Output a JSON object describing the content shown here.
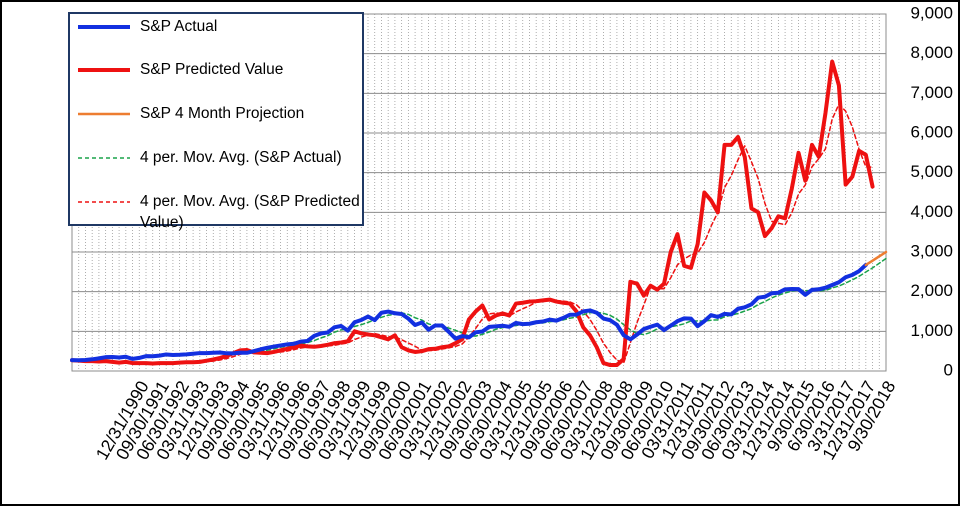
{
  "chart_data": {
    "type": "line",
    "categories": [
      null,
      null,
      null,
      null,
      null,
      null,
      null,
      null,
      null,
      null,
      "12/31/1990",
      null,
      null,
      "09/30/1991",
      null,
      null,
      "06/30/1992",
      null,
      null,
      "03/31/1993",
      null,
      null,
      "12/31/1993",
      null,
      null,
      "09/30/1994",
      null,
      null,
      "06/30/1995",
      null,
      null,
      "03/31/1996",
      null,
      null,
      "12/31/1996",
      null,
      null,
      "09/30/1997",
      null,
      null,
      "06/30/1998",
      null,
      null,
      "03/31/1999",
      null,
      null,
      "12/31/1999",
      null,
      null,
      "09/30/2000",
      null,
      null,
      "06/30/2001",
      null,
      null,
      "03/31/2002",
      null,
      null,
      "12/31/2002",
      null,
      null,
      "09/30/2003",
      null,
      null,
      "06/30/2004",
      null,
      null,
      "03/31/2005",
      null,
      null,
      "12/31/2005",
      null,
      null,
      "09/30/2006",
      null,
      null,
      "06/30/2007",
      null,
      null,
      "03/31/2008",
      null,
      null,
      "12/31/2008",
      null,
      null,
      "09/30/2009",
      null,
      null,
      "06/30/2010",
      null,
      null,
      "03/31/2011",
      null,
      null,
      "12/31/2011",
      null,
      null,
      "09/30/2012",
      null,
      null,
      "06/30/2013",
      null,
      null,
      "03/31/2014",
      null,
      null,
      "12/31/2014",
      null,
      null,
      "9/30/2015",
      null,
      null,
      "6/30/2016",
      null,
      null,
      "3/31/2017",
      null,
      null,
      "12/31/2017",
      null,
      null,
      "9/30/2018"
    ],
    "series": [
      {
        "name": "S&P Actual",
        "color": "#1230e0",
        "width": 4,
        "dashed": false,
        "values": [
          274,
          272,
          278,
          295,
          318,
          349,
          353,
          340,
          358,
          306,
          330,
          375,
          371,
          388,
          417,
          404,
          409,
          418,
          436,
          452,
          451,
          459,
          466,
          446,
          444,
          463,
          459,
          501,
          545,
          584,
          616,
          645,
          671,
          687,
          741,
          757,
          885,
          947,
          970,
          1102,
          1134,
          1017,
          1229,
          1286,
          1373,
          1283,
          1469,
          1499,
          1455,
          1437,
          1320,
          1160,
          1224,
          1041,
          1148,
          1147,
          990,
          815,
          880,
          848,
          975,
          996,
          1112,
          1126,
          1141,
          1115,
          1212,
          1181,
          1191,
          1229,
          1248,
          1295,
          1270,
          1336,
          1418,
          1421,
          1503,
          1527,
          1468,
          1323,
          1280,
          1166,
          903,
          798,
          919,
          1057,
          1115,
          1169,
          1031,
          1141,
          1258,
          1326,
          1321,
          1131,
          1258,
          1408,
          1362,
          1441,
          1426,
          1569,
          1606,
          1682,
          1848,
          1872,
          1960,
          1972,
          2059,
          2068,
          2063,
          1920,
          2044,
          2060,
          2099,
          2168,
          2239,
          2363,
          2423,
          2519,
          2674,
          null,
          null,
          null
        ]
      },
      {
        "name": "S&P Predicted Value",
        "color": "#ee1111",
        "width": 4,
        "dashed": false,
        "values": [
          270,
          260,
          250,
          250,
          240,
          250,
          230,
          210,
          230,
          200,
          200,
          200,
          190,
          200,
          200,
          200,
          210,
          220,
          220,
          230,
          260,
          290,
          330,
          380,
          450,
          520,
          530,
          470,
          460,
          450,
          480,
          520,
          560,
          600,
          640,
          620,
          610,
          630,
          660,
          700,
          720,
          750,
          1000,
          950,
          920,
          900,
          850,
          800,
          900,
          600,
          520,
          480,
          500,
          550,
          560,
          600,
          620,
          700,
          800,
          1300,
          1500,
          1650,
          1300,
          1400,
          1450,
          1400,
          1700,
          1720,
          1750,
          1760,
          1780,
          1800,
          1750,
          1720,
          1700,
          1500,
          1100,
          900,
          600,
          200,
          150,
          150,
          300,
          2250,
          2200,
          1900,
          2150,
          2050,
          2200,
          3000,
          3450,
          2650,
          2600,
          3200,
          4500,
          4300,
          4000,
          5700,
          5700,
          5900,
          5400,
          4100,
          4000,
          3400,
          3600,
          3900,
          3850,
          4600,
          5500,
          4800,
          5700,
          5400,
          6500,
          7800,
          7200,
          4700,
          4900,
          5550,
          5450,
          4650,
          null,
          null
        ]
      },
      {
        "name": "S&P 4 Month Projection",
        "color": "#ed7d31",
        "width": 2.5,
        "dashed": false,
        "values": [
          null,
          null,
          null,
          null,
          null,
          null,
          null,
          null,
          null,
          null,
          null,
          null,
          null,
          null,
          null,
          null,
          null,
          null,
          null,
          null,
          null,
          null,
          null,
          null,
          null,
          null,
          null,
          null,
          null,
          null,
          null,
          null,
          null,
          null,
          null,
          null,
          null,
          null,
          null,
          null,
          null,
          null,
          null,
          null,
          null,
          null,
          null,
          null,
          null,
          null,
          null,
          null,
          null,
          null,
          null,
          null,
          null,
          null,
          null,
          null,
          null,
          null,
          null,
          null,
          null,
          null,
          null,
          null,
          null,
          null,
          null,
          null,
          null,
          null,
          null,
          null,
          null,
          null,
          null,
          null,
          null,
          null,
          null,
          null,
          null,
          null,
          null,
          null,
          null,
          null,
          null,
          null,
          null,
          null,
          null,
          null,
          null,
          null,
          null,
          null,
          null,
          null,
          null,
          null,
          null,
          null,
          null,
          null,
          null,
          null,
          null,
          null,
          null,
          null,
          null,
          null,
          null,
          null,
          2674,
          2780,
          2890,
          3000
        ]
      },
      {
        "name": "4 per. Mov. Avg. (S&P Actual)",
        "color": "#1aa34a",
        "width": 1.5,
        "dashed": true,
        "values": [
          null,
          null,
          null,
          280,
          291,
          310,
          329,
          340,
          350,
          339,
          334,
          342,
          346,
          366,
          388,
          395,
          405,
          412,
          417,
          429,
          439,
          450,
          457,
          456,
          454,
          455,
          453,
          467,
          492,
          522,
          562,
          598,
          629,
          655,
          686,
          714,
          768,
          833,
          890,
          976,
          1038,
          1056,
          1121,
          1167,
          1226,
          1293,
          1353,
          1406,
          1427,
          1465,
          1428,
          1343,
          1285,
          1186,
          1143,
          1140,
          1082,
          1025,
          958,
          883,
          880,
          925,
          983,
          1052,
          1094,
          1124,
          1149,
          1162,
          1175,
          1203,
          1212,
          1241,
          1261,
          1287,
          1330,
          1361,
          1420,
          1467,
          1480,
          1455,
          1400,
          1309,
          1168,
          1037,
          947,
          919,
          972,
          1065,
          1093,
          1114,
          1150,
          1189,
          1262,
          1259,
          1259,
          1280,
          1290,
          1367,
          1409,
          1450,
          1511,
          1571,
          1676,
          1752,
          1841,
          1913,
          1966,
          2015,
          2041,
          2028,
          2024,
          2022,
          2031,
          2093,
          2142,
          2217,
          2298,
          2386,
          2495,
          2599,
          2716,
          2836
        ]
      },
      {
        "name": "4 per. Mov. Avg. (S&P Predicted Value)",
        "color": "#ee1111",
        "width": 1.5,
        "dashed": true,
        "values": [
          null,
          null,
          null,
          258,
          250,
          248,
          243,
          233,
          230,
          218,
          210,
          208,
          198,
          198,
          198,
          198,
          203,
          208,
          213,
          220,
          233,
          250,
          278,
          315,
          363,
          420,
          470,
          493,
          495,
          478,
          465,
          478,
          503,
          540,
          580,
          605,
          618,
          625,
          630,
          650,
          678,
          708,
          793,
          855,
          905,
          943,
          905,
          868,
          863,
          788,
          705,
          625,
          525,
          513,
          523,
          553,
          583,
          620,
          680,
          855,
          1075,
          1313,
          1438,
          1463,
          1450,
          1388,
          1488,
          1568,
          1643,
          1733,
          1753,
          1773,
          1773,
          1763,
          1743,
          1668,
          1505,
          1300,
          1025,
          700,
          463,
          275,
          200,
          713,
          1225,
          1663,
          2125,
          2075,
          2075,
          2350,
          2675,
          2825,
          2925,
          2975,
          3238,
          3650,
          4000,
          4625,
          4925,
          5325,
          5675,
          5275,
          4850,
          4225,
          3775,
          3725,
          3688,
          3988,
          4463,
          4688,
          5150,
          5350,
          5600,
          6350,
          6725,
          6550,
          6150,
          5588,
          5150,
          5138,
          null,
          null
        ]
      }
    ],
    "ylim": [
      0,
      9000
    ],
    "yticks": [
      0,
      {
        "value": 1000,
        "label": "1,000"
      },
      {
        "value": 2000,
        "label": "2,000"
      },
      {
        "value": 3000,
        "label": "3,000"
      },
      {
        "value": 4000,
        "label": "4,000"
      },
      {
        "value": 5000,
        "label": "5,000"
      },
      {
        "value": 6000,
        "label": "6,000"
      },
      {
        "value": 7000,
        "label": "7,000"
      },
      {
        "value": 8000,
        "label": "8,000"
      },
      {
        "value": 9000,
        "label": "9,000"
      }
    ],
    "grid": true,
    "legend": "upper left"
  }
}
